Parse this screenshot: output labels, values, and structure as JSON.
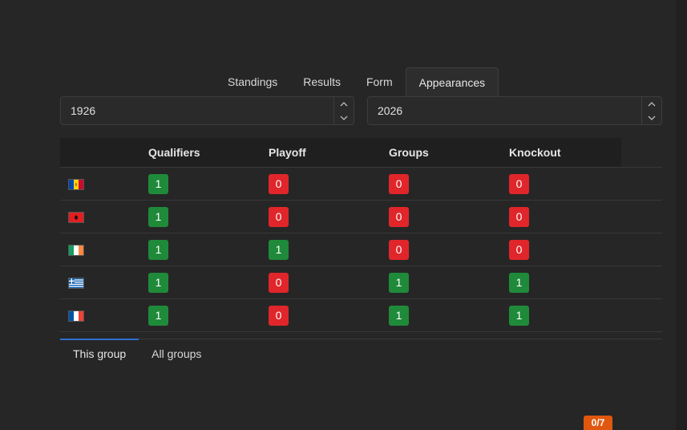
{
  "tabs": [
    {
      "label": "Standings",
      "active": false
    },
    {
      "label": "Results",
      "active": false
    },
    {
      "label": "Form",
      "active": false
    },
    {
      "label": "Appearances",
      "active": true
    }
  ],
  "year_range": {
    "from": "1926",
    "to": "2026"
  },
  "table": {
    "columns": [
      "",
      "Qualifiers",
      "Playoff",
      "Groups",
      "Knockout"
    ],
    "rows": [
      {
        "flag": "moldova-flag-icon",
        "qualifiers": "1",
        "playoff": "0",
        "groups": "0",
        "knockout": "0"
      },
      {
        "flag": "albania-flag-icon",
        "qualifiers": "1",
        "playoff": "0",
        "groups": "0",
        "knockout": "0"
      },
      {
        "flag": "ireland-flag-icon",
        "qualifiers": "1",
        "playoff": "1",
        "groups": "0",
        "knockout": "0"
      },
      {
        "flag": "greece-flag-icon",
        "qualifiers": "1",
        "playoff": "0",
        "groups": "1",
        "knockout": "1"
      },
      {
        "flag": "france-flag-icon",
        "qualifiers": "1",
        "playoff": "0",
        "groups": "1",
        "knockout": "1"
      }
    ]
  },
  "subtabs": [
    {
      "label": "This group",
      "active": true
    },
    {
      "label": "All groups",
      "active": false
    }
  ],
  "counter": "0/7",
  "colors": {
    "yes": "#1f8a3a",
    "no": "#e0262a",
    "accent": "#2f6fd0",
    "counter": "#e0580f"
  }
}
